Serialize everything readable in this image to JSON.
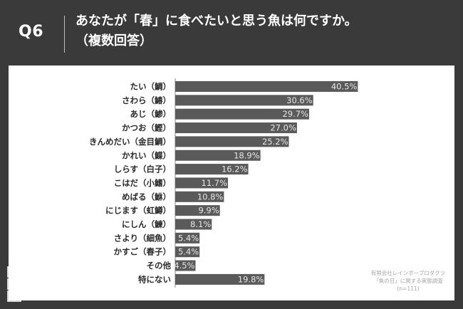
{
  "header": {
    "qnum": "Q6",
    "title_line1": "あなたが「春」に食べたいと思う魚は何ですか。",
    "title_line2": "（複数回答）"
  },
  "source": {
    "line1": "有限会社レインボープロダクツ",
    "line2": "「魚の日」に関する実態調査",
    "line3": "(n=111)"
  },
  "colors": {
    "background": "#3a3a3a",
    "panel": "#ffffff",
    "bar": "#5a5a5a",
    "value_label": "#e6e6e6"
  },
  "chart_data": {
    "type": "bar",
    "orientation": "horizontal",
    "unit": "%",
    "xlim": [
      0,
      50
    ],
    "grid": false,
    "categories": [
      "たい（鯛）",
      "さわら（鰆）",
      "あじ（鯵）",
      "かつお（鰹）",
      "きんめだい（金目鯛）",
      "かれい（鰈）",
      "しらす（白子）",
      "こはだ（小鰭）",
      "めばる（鮴）",
      "にじます（虹鱒）",
      "にしん（鰊）",
      "さより（細魚）",
      "かすご（春子）",
      "その他",
      "特にない"
    ],
    "values": [
      40.5,
      30.6,
      29.7,
      27.0,
      25.2,
      18.9,
      16.2,
      11.7,
      10.8,
      9.9,
      8.1,
      5.4,
      5.4,
      4.5,
      19.8
    ],
    "value_labels": [
      "40.5%",
      "30.6%",
      "29.7%",
      "27.0%",
      "25.2%",
      "18.9%",
      "16.2%",
      "11.7%",
      "10.8%",
      "9.9%",
      "8.1%",
      "5.4%",
      "5.4%",
      "4.5%",
      "19.8%"
    ]
  }
}
